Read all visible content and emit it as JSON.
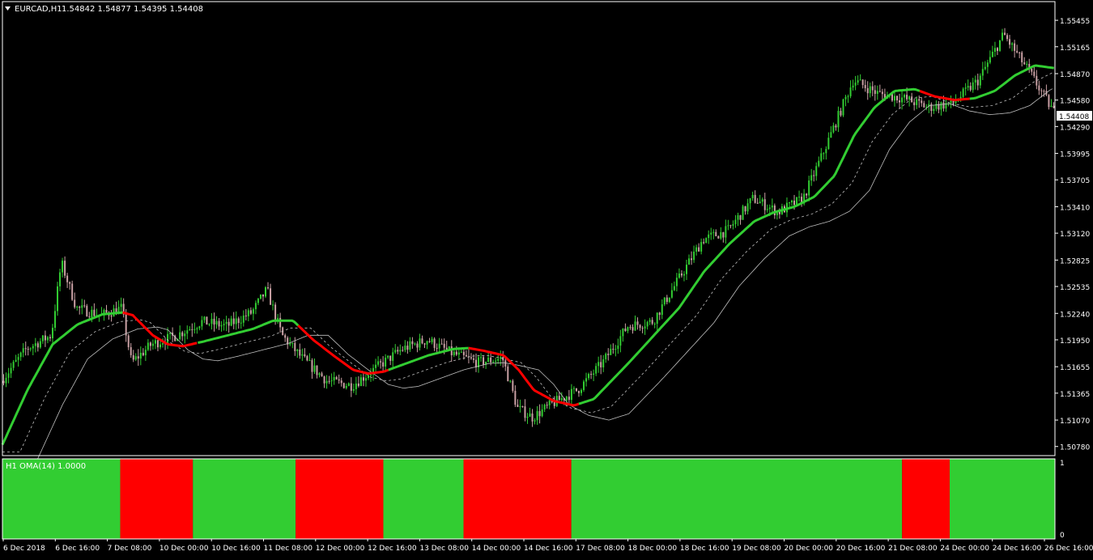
{
  "header": {
    "symbol": "EURCAD,H1",
    "ohlc": "1.54842 1.54877 1.54395 1.54408"
  },
  "colors": {
    "background": "#000000",
    "axis": "#ffffff",
    "bull_candle": "#32cd32",
    "bear_candle": "#c9a0a4",
    "oma_up": "#32cd32",
    "oma_down": "#ff0000",
    "band": "#c0c0c0",
    "price_label_bg": "#ffffff"
  },
  "chart_data": [
    {
      "type": "line",
      "title": "EURCAD,H1",
      "ohlc_readout": "1.54842 1.54877 1.54395 1.54408",
      "current_price": 1.54408,
      "current_price_label": "1.54408",
      "ylim": [
        1.5068,
        1.5566
      ],
      "y_ticks": [
        "1.55455",
        "1.55165",
        "1.54870",
        "1.54580",
        "1.54290",
        "1.53995",
        "1.53705",
        "1.53410",
        "1.53120",
        "1.52825",
        "1.52535",
        "1.52240",
        "1.51950",
        "1.51655",
        "1.51365",
        "1.51070",
        "1.50780"
      ],
      "x_ticks": [
        "6 Dec 2018",
        "6 Dec 16:00",
        "7 Dec 08:00",
        "10 Dec 00:00",
        "10 Dec 16:00",
        "11 Dec 08:00",
        "12 Dec 00:00",
        "12 Dec 16:00",
        "13 Dec 08:00",
        "14 Dec 00:00",
        "14 Dec 16:00",
        "17 Dec 08:00",
        "18 Dec 00:00",
        "18 Dec 16:00",
        "19 Dec 08:00",
        "20 Dec 00:00",
        "20 Dec 16:00",
        "21 Dec 08:00",
        "24 Dec 00:00",
        "24 Dec 16:00",
        "26 Dec 16:00"
      ],
      "grid": false,
      "oma_line": [
        [
          0,
          1.508
        ],
        [
          0.5,
          1.514
        ],
        [
          1.0,
          1.519
        ],
        [
          1.5,
          1.5212
        ],
        [
          2.0,
          1.5223
        ],
        [
          2.4,
          1.5225
        ],
        [
          2.6,
          1.5222
        ],
        [
          3.0,
          1.52
        ],
        [
          3.3,
          1.519
        ],
        [
          3.6,
          1.5188
        ],
        [
          4.0,
          1.5193
        ],
        [
          4.5,
          1.52
        ],
        [
          5.0,
          1.5207
        ],
        [
          5.4,
          1.5216
        ],
        [
          5.8,
          1.5216
        ],
        [
          6.2,
          1.5195
        ],
        [
          6.6,
          1.5178
        ],
        [
          7.0,
          1.5162
        ],
        [
          7.3,
          1.5158
        ],
        [
          7.6,
          1.516
        ],
        [
          8.0,
          1.5168
        ],
        [
          8.5,
          1.5178
        ],
        [
          9.0,
          1.5185
        ],
        [
          9.3,
          1.5186
        ],
        [
          9.6,
          1.5183
        ],
        [
          10.0,
          1.5178
        ],
        [
          10.3,
          1.5162
        ],
        [
          10.6,
          1.514
        ],
        [
          11.0,
          1.5128
        ],
        [
          11.4,
          1.5123
        ],
        [
          11.8,
          1.513
        ],
        [
          12.5,
          1.517
        ],
        [
          13.0,
          1.52
        ],
        [
          13.5,
          1.523
        ],
        [
          14.0,
          1.527
        ],
        [
          14.5,
          1.53
        ],
        [
          15.0,
          1.5325
        ],
        [
          15.4,
          1.5335
        ],
        [
          15.8,
          1.5341
        ],
        [
          16.2,
          1.5352
        ],
        [
          16.6,
          1.5375
        ],
        [
          17.0,
          1.542
        ],
        [
          17.4,
          1.545
        ],
        [
          17.8,
          1.5468
        ],
        [
          18.2,
          1.547
        ],
        [
          18.6,
          1.5462
        ],
        [
          19.0,
          1.5458
        ],
        [
          19.4,
          1.546
        ],
        [
          19.8,
          1.5468
        ],
        [
          20.2,
          1.5485
        ],
        [
          20.6,
          1.5496
        ],
        [
          21.0,
          1.5493
        ]
      ],
      "oma_segments": [
        {
          "color": "green",
          "from": 0,
          "to": 2.4
        },
        {
          "color": "red",
          "from": 2.4,
          "to": 3.9
        },
        {
          "color": "green",
          "from": 3.9,
          "to": 5.9
        },
        {
          "color": "red",
          "from": 5.9,
          "to": 7.7
        },
        {
          "color": "green",
          "from": 7.7,
          "to": 9.3
        },
        {
          "color": "red",
          "from": 9.3,
          "to": 11.5
        },
        {
          "color": "green",
          "from": 11.5,
          "to": 18.3
        },
        {
          "color": "red",
          "from": 18.3,
          "to": 19.3
        },
        {
          "color": "green",
          "from": 19.3,
          "to": 21.0
        }
      ],
      "candles_daily_trend": [
        [
          0,
          1.515
        ],
        [
          0.5,
          1.5185
        ],
        [
          1.0,
          1.52
        ],
        [
          1.2,
          1.528
        ],
        [
          1.5,
          1.523
        ],
        [
          2.0,
          1.5222
        ],
        [
          2.4,
          1.523
        ],
        [
          2.6,
          1.517
        ],
        [
          3.0,
          1.519
        ],
        [
          3.5,
          1.52
        ],
        [
          4.0,
          1.5215
        ],
        [
          4.5,
          1.521
        ],
        [
          5.0,
          1.5225
        ],
        [
          5.3,
          1.525
        ],
        [
          5.6,
          1.52
        ],
        [
          6.0,
          1.5175
        ],
        [
          6.5,
          1.515
        ],
        [
          7.0,
          1.5145
        ],
        [
          7.5,
          1.5165
        ],
        [
          8.0,
          1.5185
        ],
        [
          8.5,
          1.5195
        ],
        [
          9.0,
          1.518
        ],
        [
          9.5,
          1.517
        ],
        [
          10.0,
          1.5175
        ],
        [
          10.3,
          1.512
        ],
        [
          10.6,
          1.511
        ],
        [
          11.0,
          1.5125
        ],
        [
          11.5,
          1.514
        ],
        [
          12.0,
          1.517
        ],
        [
          12.5,
          1.521
        ],
        [
          13.0,
          1.5215
        ],
        [
          13.5,
          1.526
        ],
        [
          14.0,
          1.5305
        ],
        [
          14.5,
          1.5315
        ],
        [
          15.0,
          1.535
        ],
        [
          15.5,
          1.5335
        ],
        [
          16.0,
          1.535
        ],
        [
          16.4,
          1.54
        ],
        [
          16.7,
          1.544
        ],
        [
          17.0,
          1.548
        ],
        [
          17.5,
          1.5465
        ],
        [
          18.0,
          1.546
        ],
        [
          18.5,
          1.545
        ],
        [
          19.0,
          1.5455
        ],
        [
          19.5,
          1.548
        ],
        [
          20.0,
          1.553
        ],
        [
          20.5,
          1.549
        ],
        [
          21.0,
          1.5445
        ]
      ]
    },
    {
      "type": "bar",
      "title": "H1 OMA(14) 1.0000",
      "ylim": [
        0,
        1
      ],
      "y_ticks": [
        "1",
        "0"
      ],
      "categories": [
        "up",
        "down",
        "up",
        "down",
        "up",
        "down",
        "up",
        "down",
        "up"
      ],
      "series": [
        {
          "values": [
            1,
            1,
            1,
            1,
            1,
            1,
            1,
            1,
            1
          ]
        }
      ],
      "state_segments": [
        {
          "state": "up",
          "from": 0,
          "to": 2.35
        },
        {
          "state": "down",
          "from": 2.35,
          "to": 3.8
        },
        {
          "state": "up",
          "from": 3.8,
          "to": 5.85
        },
        {
          "state": "down",
          "from": 5.85,
          "to": 7.6
        },
        {
          "state": "up",
          "from": 7.6,
          "to": 9.2
        },
        {
          "state": "down",
          "from": 9.2,
          "to": 11.35
        },
        {
          "state": "up",
          "from": 11.35,
          "to": 17.95
        },
        {
          "state": "down",
          "from": 17.95,
          "to": 18.9
        },
        {
          "state": "up",
          "from": 18.9,
          "to": 21.0
        }
      ]
    }
  ]
}
